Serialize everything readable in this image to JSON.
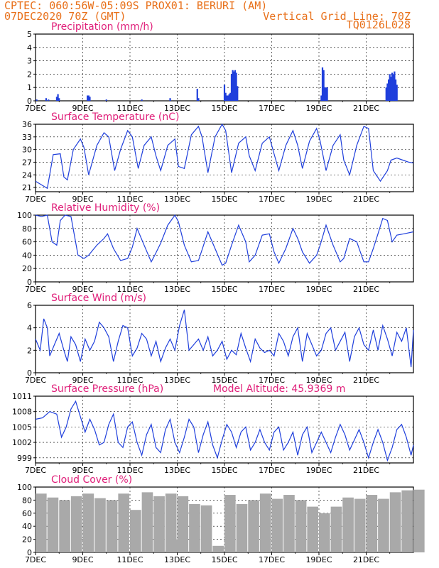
{
  "header": {
    "line1_left": "CPTEC:   060:56W-05:09S   PROX01: BERURI (AM)",
    "line2_left": "07DEC2020 70Z (GMT)",
    "line2_right": "Vertical Grid Line: 70Z",
    "line3_right": "TQ0126L028"
  },
  "colors": {
    "header": "#e8701a",
    "title": "#e0207a",
    "series": "#1f3fdc",
    "bars": "#1f3fdc",
    "cloud": "#a9a9a9",
    "arrows": "#000000"
  },
  "x_ticks": [
    "7DEC",
    "9DEC",
    "11DEC",
    "13DEC",
    "15DEC",
    "17DEC",
    "19DEC",
    "21DEC"
  ],
  "chart_data": [
    {
      "type": "bar",
      "title": "Precipitation (mm/h)",
      "ylim": [
        0,
        5
      ],
      "yticks": [
        0,
        1,
        2,
        3,
        4,
        5
      ],
      "x_days": [
        0.05,
        0.45,
        0.55,
        0.9,
        0.95,
        1.0,
        2.2,
        2.25,
        2.3,
        3.0,
        4.5,
        5.7,
        6.85,
        6.9,
        8.0,
        8.05,
        8.1,
        8.15,
        8.2,
        8.25,
        8.3,
        8.35,
        8.4,
        8.45,
        8.5,
        8.55,
        12.1,
        12.15,
        12.2,
        12.25,
        12.3,
        12.35,
        14.85,
        14.9,
        14.95,
        15.0,
        15.05,
        15.1,
        15.15,
        15.2,
        15.25,
        15.3
      ],
      "values": [
        0.1,
        0.2,
        0.1,
        0.3,
        0.5,
        0.2,
        0.4,
        0.4,
        0.3,
        0.1,
        0.1,
        0.2,
        0.9,
        0.2,
        1.2,
        0.6,
        0.4,
        0.4,
        0.5,
        0.6,
        2.0,
        2.3,
        2.2,
        2.3,
        2.1,
        1.1,
        0.4,
        2.5,
        2.3,
        1.0,
        1.0,
        1.0,
        1.0,
        1.3,
        1.6,
        2.0,
        1.8,
        2.1,
        2.0,
        2.2,
        1.6,
        1.2
      ]
    },
    {
      "type": "line",
      "title": "Surface Temperature (nC)",
      "ylim": [
        20,
        36
      ],
      "yticks": [
        21,
        24,
        27,
        30,
        33,
        36
      ],
      "x_days": [
        0,
        0.35,
        0.5,
        0.75,
        1.05,
        1.2,
        1.35,
        1.6,
        1.9,
        2.05,
        2.25,
        2.6,
        2.9,
        3.1,
        3.35,
        3.6,
        3.9,
        4.1,
        4.35,
        4.6,
        4.9,
        5.1,
        5.3,
        5.6,
        5.9,
        6.05,
        6.3,
        6.6,
        6.9,
        7.05,
        7.3,
        7.6,
        7.9,
        8.05,
        8.3,
        8.6,
        8.9,
        9.05,
        9.3,
        9.6,
        9.9,
        10.1,
        10.3,
        10.6,
        10.9,
        11.1,
        11.3,
        11.6,
        11.9,
        12.05,
        12.3,
        12.6,
        12.9,
        13.05,
        13.3,
        13.6,
        13.9,
        14.1,
        14.3,
        14.6,
        14.9,
        15.05,
        15.3,
        15.55,
        15.8,
        16.0
      ],
      "values": [
        22.5,
        21.3,
        20.8,
        28.8,
        29.0,
        23.5,
        22.8,
        30.0,
        32.5,
        30.5,
        24.0,
        31.0,
        34.0,
        33.0,
        25.0,
        30.0,
        34.5,
        33.0,
        25.5,
        31.0,
        33.0,
        28.5,
        25.0,
        31.0,
        32.5,
        26.0,
        25.5,
        33.5,
        35.5,
        33.0,
        24.5,
        33.0,
        36.0,
        34.5,
        24.5,
        31.5,
        33.0,
        28.5,
        25.0,
        31.5,
        33.0,
        29.0,
        25.0,
        31.0,
        34.5,
        31.0,
        25.5,
        32.0,
        35.0,
        32.0,
        25.0,
        31.0,
        33.5,
        27.5,
        24.0,
        31.0,
        35.5,
        35.0,
        25.0,
        22.5,
        25.0,
        27.5,
        28.0,
        27.5,
        27.0,
        26.8
      ]
    },
    {
      "type": "line",
      "title": "Relative Humidity (%)",
      "ylim": [
        0,
        100
      ],
      "yticks": [
        0,
        20,
        40,
        60,
        80,
        100
      ],
      "x_days": [
        0,
        0.25,
        0.5,
        0.7,
        0.9,
        1.05,
        1.25,
        1.5,
        1.8,
        2.05,
        2.25,
        2.6,
        2.9,
        3.05,
        3.3,
        3.6,
        3.9,
        4.1,
        4.3,
        4.6,
        4.9,
        5.05,
        5.3,
        5.6,
        5.9,
        6.05,
        6.3,
        6.6,
        6.9,
        7.05,
        7.3,
        7.6,
        7.9,
        8.05,
        8.3,
        8.6,
        8.9,
        9.05,
        9.3,
        9.6,
        9.9,
        10.1,
        10.3,
        10.6,
        10.9,
        11.1,
        11.3,
        11.6,
        11.9,
        12.05,
        12.3,
        12.6,
        12.9,
        13.05,
        13.3,
        13.6,
        13.9,
        14.1,
        14.3,
        14.5,
        14.7,
        14.9,
        15.1,
        15.3,
        15.6,
        16.0
      ],
      "values": [
        100,
        98,
        100,
        60,
        55,
        92,
        100,
        98,
        40,
        35,
        40,
        55,
        65,
        72,
        50,
        32,
        35,
        52,
        80,
        55,
        30,
        40,
        58,
        85,
        100,
        90,
        55,
        30,
        32,
        48,
        75,
        50,
        25,
        28,
        55,
        85,
        60,
        30,
        40,
        70,
        72,
        45,
        28,
        50,
        80,
        65,
        45,
        28,
        40,
        55,
        85,
        55,
        30,
        35,
        65,
        60,
        30,
        30,
        50,
        72,
        95,
        92,
        60,
        70,
        72,
        75
      ]
    },
    {
      "type": "line",
      "title": "Surface Wind (m/s)",
      "ylim": [
        0,
        6
      ],
      "yticks": [
        0,
        2,
        4,
        6
      ],
      "x_days": [
        0,
        0.2,
        0.35,
        0.5,
        0.6,
        0.8,
        1.0,
        1.2,
        1.35,
        1.5,
        1.7,
        1.9,
        2.1,
        2.3,
        2.5,
        2.7,
        2.9,
        3.1,
        3.3,
        3.5,
        3.7,
        3.9,
        4.1,
        4.3,
        4.5,
        4.7,
        4.9,
        5.1,
        5.3,
        5.5,
        5.7,
        5.9,
        6.1,
        6.3,
        6.5,
        6.7,
        6.9,
        7.1,
        7.3,
        7.5,
        7.7,
        7.9,
        8.1,
        8.3,
        8.5,
        8.7,
        8.9,
        9.1,
        9.3,
        9.5,
        9.7,
        9.9,
        10.1,
        10.3,
        10.5,
        10.7,
        10.9,
        11.1,
        11.3,
        11.5,
        11.7,
        11.9,
        12.1,
        12.3,
        12.5,
        12.7,
        12.9,
        13.1,
        13.3,
        13.5,
        13.7,
        13.9,
        14.1,
        14.3,
        14.5,
        14.7,
        14.9,
        15.1,
        15.3,
        15.5,
        15.7,
        15.9,
        16.0
      ],
      "values": [
        3.0,
        2.0,
        4.8,
        4.0,
        1.5,
        2.5,
        3.5,
        2.0,
        1.0,
        3.2,
        2.5,
        1.0,
        3.0,
        2.0,
        2.8,
        4.5,
        4.0,
        3.2,
        1.0,
        2.8,
        4.2,
        4.0,
        1.5,
        2.2,
        3.5,
        3.0,
        1.5,
        2.8,
        1.0,
        2.2,
        3.0,
        2.0,
        4.2,
        5.6,
        2.0,
        2.5,
        3.0,
        2.0,
        3.2,
        1.5,
        2.0,
        2.8,
        1.2,
        2.0,
        1.6,
        3.5,
        2.2,
        1.0,
        3.0,
        2.2,
        1.8,
        2.0,
        1.5,
        3.5,
        2.8,
        1.5,
        3.2,
        4.0,
        1.0,
        3.5,
        2.5,
        1.5,
        2.0,
        3.5,
        4.0,
        2.0,
        2.8,
        3.6,
        1.0,
        3.2,
        4.0,
        2.5,
        2.0,
        3.8,
        2.0,
        4.2,
        3.0,
        1.5,
        3.6,
        2.8,
        4.0,
        0.5,
        3.8
      ]
    },
    {
      "type": "line",
      "title": "Surface Pressure (hPa)",
      "subtitle": "Model Altitude: 45.9369 m",
      "ylim": [
        998,
        1011
      ],
      "yticks": [
        999,
        1002,
        1005,
        1008,
        1011
      ],
      "x_days": [
        0,
        0.3,
        0.6,
        0.9,
        1.1,
        1.3,
        1.5,
        1.7,
        1.9,
        2.1,
        2.3,
        2.5,
        2.7,
        2.9,
        3.1,
        3.3,
        3.5,
        3.7,
        3.9,
        4.1,
        4.3,
        4.5,
        4.7,
        4.9,
        5.1,
        5.3,
        5.5,
        5.7,
        5.9,
        6.1,
        6.3,
        6.5,
        6.7,
        6.9,
        7.1,
        7.3,
        7.5,
        7.7,
        7.9,
        8.1,
        8.3,
        8.5,
        8.7,
        8.9,
        9.1,
        9.3,
        9.5,
        9.7,
        9.9,
        10.1,
        10.3,
        10.5,
        10.7,
        10.9,
        11.1,
        11.3,
        11.5,
        11.7,
        11.9,
        12.1,
        12.3,
        12.5,
        12.7,
        12.9,
        13.1,
        13.3,
        13.5,
        13.7,
        13.9,
        14.1,
        14.3,
        14.5,
        14.7,
        14.9,
        15.1,
        15.3,
        15.5,
        15.7,
        15.9,
        16.0
      ],
      "values": [
        1006.5,
        1006.8,
        1008.0,
        1007.5,
        1003.0,
        1005.0,
        1008.5,
        1010.0,
        1007.0,
        1004.0,
        1006.5,
        1004.5,
        1001.5,
        1002.0,
        1005.5,
        1007.5,
        1002.0,
        1001.0,
        1005.0,
        1006.0,
        1002.0,
        999.5,
        1003.5,
        1005.5,
        1001.0,
        1000.0,
        1004.5,
        1006.5,
        1002.0,
        1000.0,
        1003.0,
        1006.5,
        1005.0,
        1000.0,
        1003.5,
        1006.0,
        1001.5,
        999.0,
        1002.5,
        1005.5,
        1004.0,
        1001.0,
        1004.0,
        1005.0,
        1000.5,
        1002.0,
        1004.5,
        1002.0,
        1000.5,
        1004.0,
        1005.0,
        1000.5,
        1002.0,
        1004.0,
        999.5,
        1003.5,
        1005.0,
        1000.0,
        1002.0,
        1004.0,
        1002.0,
        1000.0,
        1003.0,
        1005.5,
        1003.5,
        1000.5,
        1002.5,
        1004.5,
        1002.0,
        999.0,
        1002.0,
        1004.5,
        1002.0,
        998.5,
        1001.0,
        1004.5,
        1005.5,
        1003.0,
        999.5,
        1001.5
      ]
    },
    {
      "type": "bar",
      "title": "Cloud Cover (%)",
      "ylim": [
        0,
        100
      ],
      "yticks": [
        0,
        20,
        40,
        60,
        80,
        100
      ],
      "x_days": [
        0,
        0.5,
        1.0,
        1.5,
        2.0,
        2.5,
        3.0,
        3.5,
        4.0,
        4.5,
        5.0,
        5.5,
        5.75,
        6.0,
        6.5,
        7.0,
        7.5,
        8.0,
        8.5,
        9.0,
        9.5,
        10.0,
        10.5,
        11.0,
        11.5,
        12.0,
        12.5,
        13.0,
        13.5,
        14.0,
        14.5,
        15.0,
        15.5,
        16.0
      ],
      "values": [
        90,
        84,
        80,
        86,
        90,
        83,
        80,
        90,
        65,
        92,
        86,
        90,
        20,
        86,
        74,
        72,
        10,
        88,
        74,
        80,
        90,
        82,
        88,
        80,
        70,
        60,
        70,
        84,
        82,
        88,
        82,
        92,
        95,
        96
      ]
    }
  ]
}
